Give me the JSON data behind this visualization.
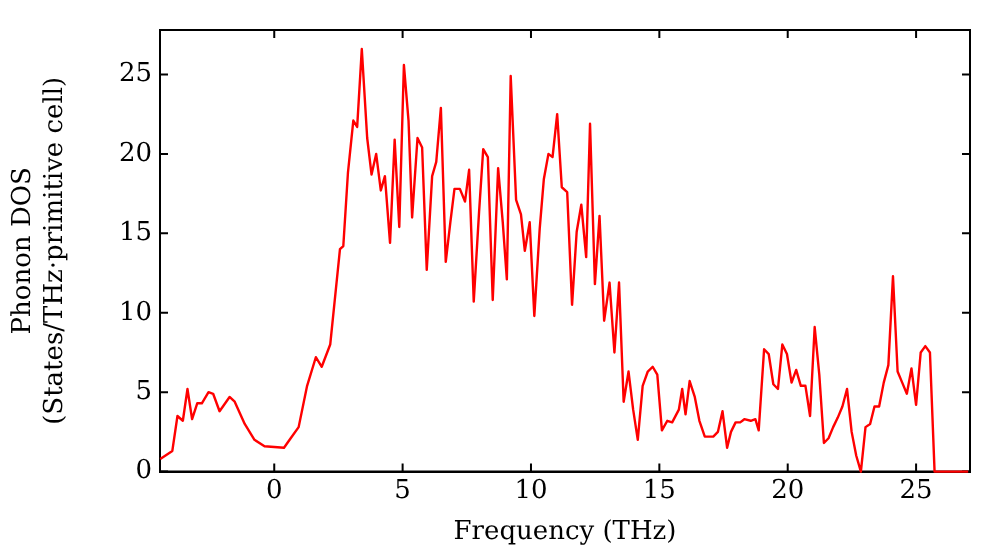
{
  "chart_data": {
    "type": "line",
    "xlabel": "Frequency (THz)",
    "ylabel": "Phonon DOS\n(States/THz·primitive cell)",
    "xlim": [
      -4.45,
      27.1
    ],
    "ylim": [
      0,
      27.8
    ],
    "xticks": [
      0,
      5,
      10,
      15,
      20,
      25
    ],
    "yticks": [
      0,
      5,
      10,
      15,
      20,
      25
    ],
    "grid": false,
    "legend": false,
    "marker": "none",
    "line_style": "solid",
    "series": [
      {
        "color": "#ff0000",
        "x": [
          -4.44,
          -3.97,
          -3.77,
          -3.56,
          -3.38,
          -3.2,
          -3.0,
          -2.82,
          -2.56,
          -2.38,
          -2.13,
          -1.74,
          -1.54,
          -1.15,
          -0.77,
          -0.38,
          0.38,
          0.64,
          0.95,
          1.28,
          1.62,
          1.85,
          2.18,
          2.56,
          2.69,
          2.87,
          3.08,
          3.23,
          3.41,
          3.62,
          3.79,
          3.97,
          4.15,
          4.31,
          4.51,
          4.69,
          4.87,
          5.05,
          5.23,
          5.37,
          5.58,
          5.76,
          5.94,
          6.15,
          6.31,
          6.49,
          6.68,
          6.86,
          7.02,
          7.23,
          7.43,
          7.59,
          7.77,
          7.98,
          8.14,
          8.32,
          8.51,
          8.72,
          8.9,
          9.06,
          9.21,
          9.42,
          9.61,
          9.76,
          9.95,
          10.13,
          10.34,
          10.5,
          10.68,
          10.84,
          11.02,
          11.2,
          11.41,
          11.6,
          11.78,
          11.96,
          12.15,
          12.3,
          12.49,
          12.67,
          12.85,
          13.06,
          13.25,
          13.43,
          13.61,
          13.8,
          13.98,
          14.16,
          14.35,
          14.55,
          14.74,
          14.92,
          15.1,
          15.31,
          15.5,
          15.76,
          15.89,
          16.02,
          16.18,
          16.38,
          16.56,
          16.77,
          17.1,
          17.28,
          17.46,
          17.64,
          17.79,
          17.97,
          18.15,
          18.31,
          18.56,
          18.74,
          18.87,
          19.08,
          19.26,
          19.44,
          19.62,
          19.79,
          19.97,
          20.15,
          20.33,
          20.51,
          20.69,
          20.87,
          21.05,
          21.23,
          21.41,
          21.59,
          21.77,
          21.95,
          22.13,
          22.31,
          22.49,
          22.67,
          22.85,
          23.03,
          23.21,
          23.38,
          23.56,
          23.74,
          23.92,
          24.1,
          24.28,
          24.46,
          24.64,
          24.82,
          25.0,
          25.18,
          25.36,
          25.54,
          25.72,
          27.03
        ],
        "values": [
          0.8,
          1.3,
          3.5,
          3.2,
          5.2,
          3.3,
          4.3,
          4.3,
          5.0,
          4.9,
          3.8,
          4.7,
          4.4,
          3.0,
          2.0,
          1.6,
          1.5,
          2.1,
          2.8,
          5.4,
          7.2,
          6.6,
          8.0,
          14.0,
          14.2,
          18.8,
          22.1,
          21.7,
          26.6,
          21.0,
          18.7,
          20.0,
          17.7,
          18.6,
          14.4,
          20.9,
          15.4,
          25.6,
          22.1,
          16.0,
          21.0,
          20.4,
          12.7,
          18.6,
          19.5,
          22.9,
          13.2,
          15.7,
          17.8,
          17.8,
          17.0,
          19.0,
          10.7,
          16.4,
          20.3,
          19.8,
          10.8,
          19.1,
          15.7,
          12.1,
          24.9,
          17.1,
          16.2,
          13.9,
          15.7,
          9.8,
          15.3,
          18.4,
          20.0,
          19.8,
          22.5,
          17.9,
          17.6,
          10.5,
          15.1,
          16.8,
          13.5,
          21.9,
          11.8,
          16.1,
          9.5,
          11.9,
          7.5,
          11.9,
          4.4,
          6.3,
          3.9,
          2.0,
          5.4,
          6.3,
          6.6,
          6.1,
          2.6,
          3.2,
          3.1,
          3.9,
          5.2,
          3.6,
          5.7,
          4.7,
          3.2,
          2.2,
          2.2,
          2.5,
          3.8,
          1.5,
          2.5,
          3.1,
          3.1,
          3.3,
          3.2,
          3.3,
          2.6,
          7.7,
          7.4,
          5.5,
          5.2,
          8.0,
          7.4,
          5.6,
          6.4,
          5.4,
          5.4,
          3.5,
          9.1,
          6.1,
          1.8,
          2.1,
          2.8,
          3.4,
          4.1,
          5.2,
          2.5,
          1.0,
          0.0,
          2.8,
          3.0,
          4.1,
          4.1,
          5.6,
          6.7,
          12.3,
          6.3,
          5.6,
          4.9,
          6.5,
          4.2,
          7.5,
          7.9,
          7.5,
          0.0,
          0.0
        ]
      }
    ]
  }
}
